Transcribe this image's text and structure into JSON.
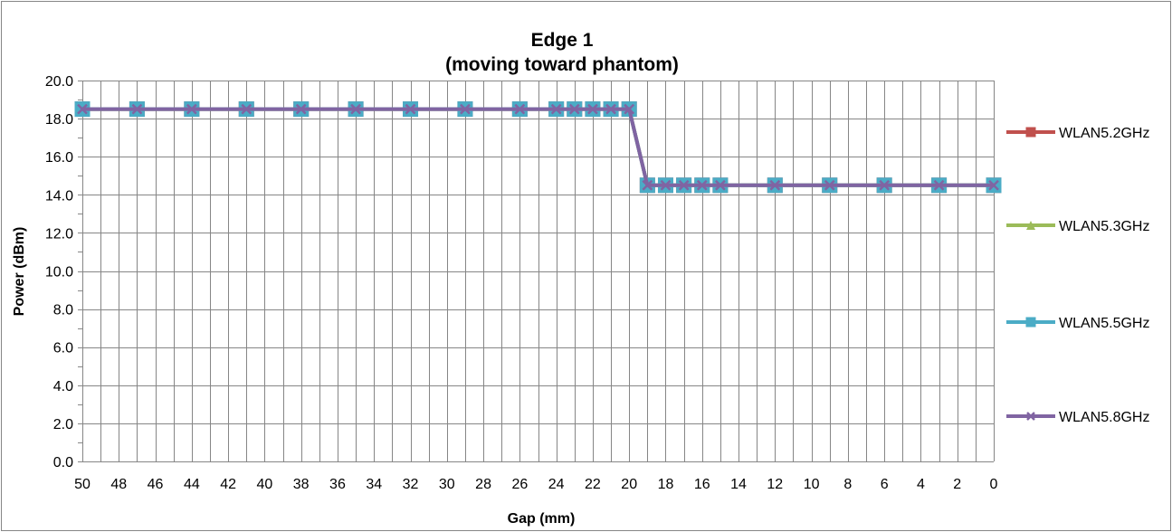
{
  "chart_data": {
    "type": "line",
    "title": "Edge 1",
    "subtitle": "(moving toward phantom)",
    "xlabel": "Gap (mm)",
    "ylabel": "Power (dBm)",
    "xlim": [
      50,
      0
    ],
    "x_reversed": true,
    "ylim": [
      0,
      20
    ],
    "y_ticks": [
      "0.0",
      "2.0",
      "4.0",
      "6.0",
      "8.0",
      "10.0",
      "12.0",
      "14.0",
      "16.0",
      "18.0",
      "20.0"
    ],
    "x_ticks": [
      "50",
      "48",
      "46",
      "44",
      "42",
      "40",
      "38",
      "36",
      "34",
      "32",
      "30",
      "28",
      "26",
      "24",
      "22",
      "20",
      "18",
      "16",
      "14",
      "12",
      "10",
      "8",
      "6",
      "4",
      "2",
      "0"
    ],
    "grid": true,
    "legend_position": "right",
    "x": [
      50,
      47,
      44,
      41,
      38,
      35,
      32,
      29,
      26,
      24,
      23,
      22,
      21,
      20,
      19,
      18,
      17,
      16,
      15,
      12,
      9,
      6,
      3,
      0
    ],
    "series": [
      {
        "name": "WLAN5.2GHz",
        "color": "#C0504D",
        "marker": "square",
        "values": [
          18.5,
          18.5,
          18.5,
          18.5,
          18.5,
          18.5,
          18.5,
          18.5,
          18.5,
          18.5,
          18.5,
          18.5,
          18.5,
          18.5,
          14.5,
          14.5,
          14.5,
          14.5,
          14.5,
          14.5,
          14.5,
          14.5,
          14.5,
          14.5
        ]
      },
      {
        "name": "WLAN5.3GHz",
        "color": "#9BBB59",
        "marker": "triangle",
        "values": [
          18.5,
          18.5,
          18.5,
          18.5,
          18.5,
          18.5,
          18.5,
          18.5,
          18.5,
          18.5,
          18.5,
          18.5,
          18.5,
          18.5,
          14.5,
          14.5,
          14.5,
          14.5,
          14.5,
          14.5,
          14.5,
          14.5,
          14.5,
          14.5
        ]
      },
      {
        "name": "WLAN5.5GHz",
        "color": "#4BACC6",
        "marker": "square",
        "values": [
          18.5,
          18.5,
          18.5,
          18.5,
          18.5,
          18.5,
          18.5,
          18.5,
          18.5,
          18.5,
          18.5,
          18.5,
          18.5,
          18.5,
          14.5,
          14.5,
          14.5,
          14.5,
          14.5,
          14.5,
          14.5,
          14.5,
          14.5,
          14.5
        ]
      },
      {
        "name": "WLAN5.8GHz",
        "color": "#8064A2",
        "marker": "x",
        "values": [
          18.5,
          18.5,
          18.5,
          18.5,
          18.5,
          18.5,
          18.5,
          18.5,
          18.5,
          18.5,
          18.5,
          18.5,
          18.5,
          18.5,
          14.5,
          14.5,
          14.5,
          14.5,
          14.5,
          14.5,
          14.5,
          14.5,
          14.5,
          14.5
        ]
      }
    ]
  }
}
